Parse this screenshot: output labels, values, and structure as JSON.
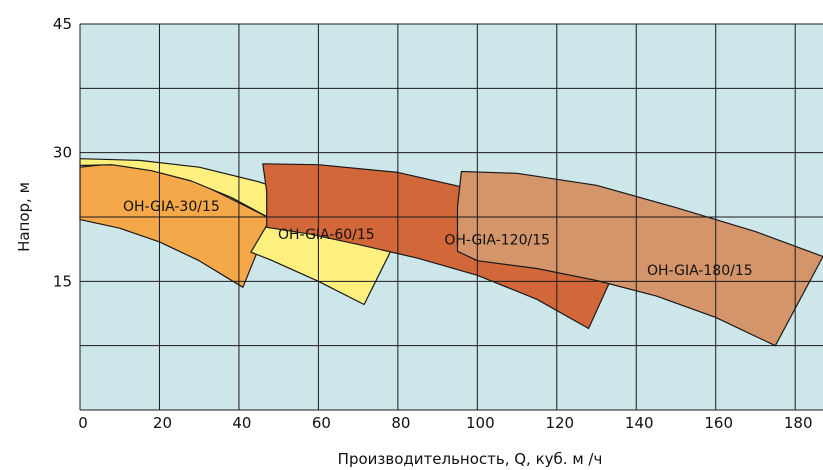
{
  "chart_data": {
    "type": "area",
    "xlabel": "Производительность, Q, куб. м /ч",
    "ylabel": "Напор, м",
    "xlim": [
      0,
      187
    ],
    "ylim": [
      0,
      45
    ],
    "x_ticks": [
      0,
      20,
      40,
      60,
      80,
      100,
      120,
      140,
      160,
      180
    ],
    "y_ticks": [
      15,
      30,
      45
    ],
    "x_grid": [
      0,
      20,
      40,
      60,
      80,
      100,
      120,
      140,
      160,
      180
    ],
    "y_grid": [
      0,
      7.5,
      15,
      22.5,
      30,
      37.5,
      45
    ],
    "plot_background": "#cde6ea",
    "grid": true,
    "regions": [
      {
        "name": "OH-GIA-30/15",
        "color": "#f5a84a",
        "label_at": [
          23,
          23.8
        ],
        "polygon": [
          [
            0,
            28.3
          ],
          [
            6,
            28.6
          ],
          [
            15,
            28.5
          ],
          [
            25,
            27.5
          ],
          [
            35,
            25.3
          ],
          [
            48,
            22.3
          ],
          [
            41,
            14.3
          ],
          [
            30,
            17.4
          ],
          [
            20,
            19.6
          ],
          [
            10,
            21.2
          ],
          [
            0,
            22.2
          ]
        ]
      },
      {
        "name": "OH-GIA-60/15",
        "color": "#fdf07f",
        "label_at": [
          62,
          20.5
        ],
        "polygon": [
          [
            0,
            29.3
          ],
          [
            15,
            29.1
          ],
          [
            30,
            28.3
          ],
          [
            45,
            26.6
          ],
          [
            60,
            24.3
          ],
          [
            74,
            21.3
          ],
          [
            81,
            21.1
          ],
          [
            71.5,
            12.3
          ],
          [
            60,
            15
          ],
          [
            48,
            17.5
          ],
          [
            43,
            18.4
          ],
          [
            48,
            22.3
          ],
          [
            38,
            24.8
          ],
          [
            28,
            26.7
          ],
          [
            18,
            27.9
          ],
          [
            8,
            28.6
          ],
          [
            0,
            28.5
          ]
        ]
      },
      {
        "name": "OH-GIA-120/15",
        "color": "#d2683a",
        "label_at": [
          105,
          19.9
        ],
        "polygon": [
          [
            46,
            28.7
          ],
          [
            60,
            28.6
          ],
          [
            80,
            27.7
          ],
          [
            100,
            25.6
          ],
          [
            120,
            22.3
          ],
          [
            138,
            19.7
          ],
          [
            128,
            9.5
          ],
          [
            115,
            12.9
          ],
          [
            100,
            15.7
          ],
          [
            85,
            17.7
          ],
          [
            70,
            19.3
          ],
          [
            58,
            20.5
          ],
          [
            47,
            21.3
          ],
          [
            47,
            25.5
          ]
        ]
      },
      {
        "name": "OH-GIA-180/15",
        "color": "#d4956a",
        "label_at": [
          156,
          16.3
        ],
        "polygon": [
          [
            96,
            27.8
          ],
          [
            110,
            27.6
          ],
          [
            130,
            26.2
          ],
          [
            150,
            23.6
          ],
          [
            170,
            20.8
          ],
          [
            187,
            17.9
          ],
          [
            175,
            7.5
          ],
          [
            160,
            10.8
          ],
          [
            145,
            13.3
          ],
          [
            130,
            15.1
          ],
          [
            115,
            16.5
          ],
          [
            100,
            17.4
          ],
          [
            95,
            18.5
          ],
          [
            95,
            23.7
          ]
        ]
      }
    ]
  }
}
